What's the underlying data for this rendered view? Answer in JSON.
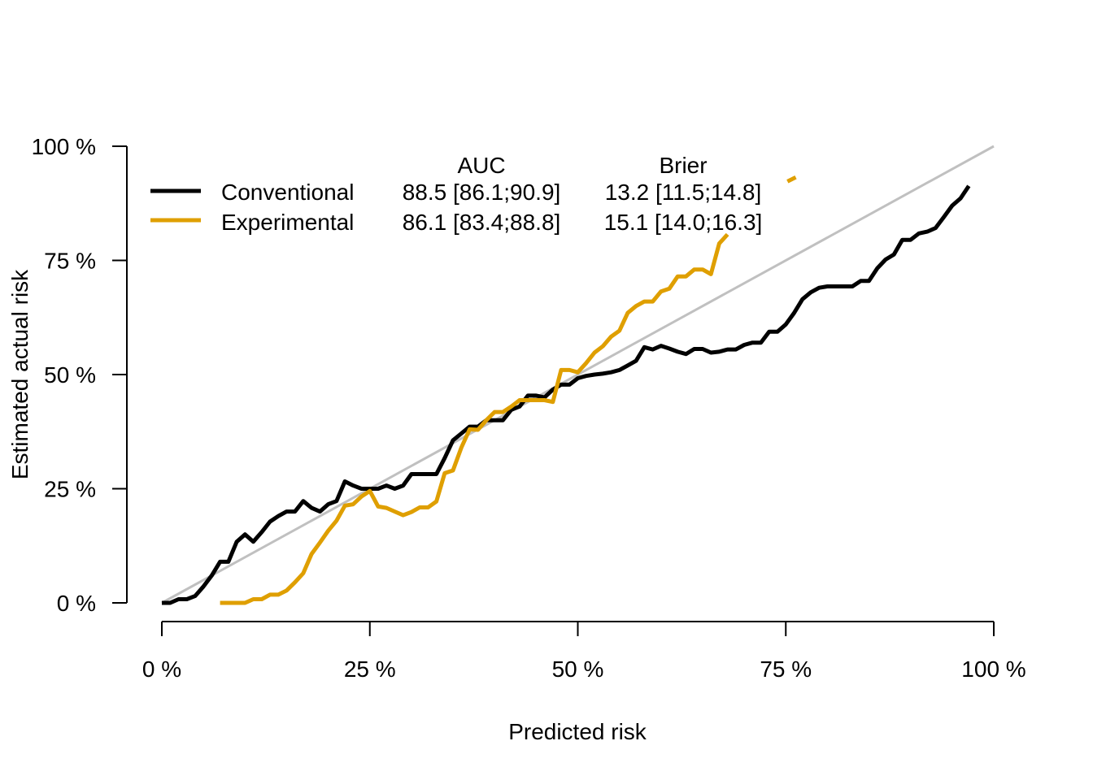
{
  "chart_data": {
    "type": "line",
    "xlabel": "Predicted risk",
    "ylabel": "Estimated actual risk",
    "xlim": [
      0,
      100
    ],
    "ylim": [
      0,
      100
    ],
    "x_ticks": [
      "0 %",
      "25 %",
      "50 %",
      "75 %",
      "100 %"
    ],
    "y_ticks": [
      "0 %",
      "25 %",
      "50 %",
      "75 %",
      "100 %"
    ],
    "x_tick_values": [
      0,
      25,
      50,
      75,
      100
    ],
    "y_tick_values": [
      0,
      25,
      50,
      75,
      100
    ],
    "grid": false,
    "reference_line": {
      "from": [
        0,
        0
      ],
      "to": [
        100,
        100
      ],
      "color": "#c0c0c0"
    },
    "legend": {
      "placement": "top-left",
      "headers": {
        "auc": "AUC",
        "brier": "Brier"
      },
      "rows": [
        {
          "name": "Conventional",
          "auc": "88.5 [86.1;90.9]",
          "brier": "13.2 [11.5;14.8]",
          "color": "#000000"
        },
        {
          "name": "Experimental",
          "auc": "86.1 [83.4;88.8]",
          "brier": "15.1 [14.0;16.3]",
          "color": "#DF9F00"
        }
      ]
    },
    "series": [
      {
        "name": "Conventional",
        "color": "#000000",
        "points": [
          [
            0,
            0
          ],
          [
            1,
            0
          ],
          [
            2,
            0.8
          ],
          [
            3,
            0.8
          ],
          [
            4,
            1.5
          ],
          [
            5,
            3.6
          ],
          [
            6,
            6
          ],
          [
            7,
            9
          ],
          [
            8,
            9
          ],
          [
            9,
            13.4
          ],
          [
            10,
            15
          ],
          [
            11,
            13.4
          ],
          [
            12,
            15.5
          ],
          [
            13,
            17.8
          ],
          [
            14,
            19
          ],
          [
            15,
            20
          ],
          [
            16,
            20
          ],
          [
            17,
            22.3
          ],
          [
            18,
            20.8
          ],
          [
            19,
            20
          ],
          [
            20,
            21.6
          ],
          [
            21,
            22.3
          ],
          [
            22,
            26.6
          ],
          [
            23,
            25.7
          ],
          [
            24,
            25
          ],
          [
            25,
            25
          ],
          [
            26,
            25
          ],
          [
            27,
            25.7
          ],
          [
            28,
            25
          ],
          [
            29,
            25.7
          ],
          [
            30,
            28.2
          ],
          [
            31,
            28.2
          ],
          [
            32,
            28.2
          ],
          [
            33,
            28.2
          ],
          [
            34,
            31.7
          ],
          [
            35,
            35.6
          ],
          [
            36,
            37.1
          ],
          [
            37,
            38.6
          ],
          [
            38,
            38.6
          ],
          [
            39,
            40
          ],
          [
            40,
            40
          ],
          [
            41,
            40
          ],
          [
            42,
            42.3
          ],
          [
            43,
            43
          ],
          [
            44,
            45.4
          ],
          [
            45,
            45.4
          ],
          [
            46,
            45
          ],
          [
            47,
            46.7
          ],
          [
            48,
            47.8
          ],
          [
            49,
            47.8
          ],
          [
            50,
            49.2
          ],
          [
            51,
            49.7
          ],
          [
            52,
            50
          ],
          [
            53,
            50.2
          ],
          [
            54,
            50.5
          ],
          [
            55,
            51
          ],
          [
            56,
            52
          ],
          [
            57,
            53
          ],
          [
            58,
            56
          ],
          [
            59,
            55.5
          ],
          [
            60,
            56.3
          ],
          [
            61,
            55.7
          ],
          [
            62,
            55
          ],
          [
            63,
            54.5
          ],
          [
            64,
            55.6
          ],
          [
            65,
            55.6
          ],
          [
            66,
            54.8
          ],
          [
            67,
            55
          ],
          [
            68,
            55.5
          ],
          [
            69,
            55.5
          ],
          [
            70,
            56.5
          ],
          [
            71,
            57
          ],
          [
            72,
            57
          ],
          [
            73,
            59.4
          ],
          [
            74,
            59.4
          ],
          [
            75,
            61
          ],
          [
            76,
            63.5
          ],
          [
            77,
            66.5
          ],
          [
            78,
            68
          ],
          [
            79,
            69
          ],
          [
            80,
            69.3
          ],
          [
            81,
            69.3
          ],
          [
            82,
            69.3
          ],
          [
            83,
            69.3
          ],
          [
            84,
            70.5
          ],
          [
            85,
            70.5
          ],
          [
            86,
            73.3
          ],
          [
            87,
            75.2
          ],
          [
            88,
            76.3
          ],
          [
            89,
            79.5
          ],
          [
            90,
            79.5
          ],
          [
            91,
            80.9
          ],
          [
            92,
            81.3
          ],
          [
            93,
            82.1
          ],
          [
            94,
            84.5
          ],
          [
            95,
            87
          ],
          [
            96,
            88.6
          ],
          [
            97,
            91.3
          ]
        ]
      },
      {
        "name": "Experimental",
        "color": "#DF9F00",
        "points": [
          [
            7,
            0
          ],
          [
            8,
            0
          ],
          [
            9,
            0
          ],
          [
            10,
            0
          ],
          [
            11,
            0.8
          ],
          [
            12,
            0.8
          ],
          [
            13,
            1.8
          ],
          [
            14,
            1.8
          ],
          [
            15,
            2.7
          ],
          [
            16,
            4.5
          ],
          [
            17,
            6.5
          ],
          [
            18,
            10.7
          ],
          [
            19,
            13.2
          ],
          [
            20,
            15.8
          ],
          [
            21,
            18
          ],
          [
            22,
            21.3
          ],
          [
            23,
            21.6
          ],
          [
            24,
            23.3
          ],
          [
            25,
            24.5
          ],
          [
            26,
            21.1
          ],
          [
            27,
            20.8
          ],
          [
            28,
            20
          ],
          [
            29,
            19.2
          ],
          [
            30,
            19.9
          ],
          [
            31,
            20.9
          ],
          [
            32,
            20.9
          ],
          [
            33,
            22.2
          ],
          [
            34,
            28.4
          ],
          [
            35,
            29
          ],
          [
            36,
            34
          ],
          [
            37,
            38
          ],
          [
            38,
            37.9
          ],
          [
            39,
            40
          ],
          [
            40,
            41.8
          ],
          [
            41,
            41.8
          ],
          [
            42,
            43
          ],
          [
            43,
            44.4
          ],
          [
            44,
            44.4
          ],
          [
            45,
            44.4
          ],
          [
            46,
            44.4
          ],
          [
            47,
            44
          ],
          [
            48,
            51
          ],
          [
            49,
            51
          ],
          [
            50,
            50.5
          ],
          [
            51,
            52.5
          ],
          [
            52,
            54.8
          ],
          [
            53,
            56.2
          ],
          [
            54,
            58.3
          ],
          [
            55,
            59.6
          ],
          [
            56,
            63.5
          ],
          [
            57,
            65
          ],
          [
            58,
            66
          ],
          [
            59,
            66
          ],
          [
            60,
            68.2
          ],
          [
            61,
            68.8
          ],
          [
            62,
            71.5
          ],
          [
            63,
            71.5
          ],
          [
            64,
            73
          ],
          [
            65,
            73
          ],
          [
            66,
            72
          ],
          [
            67,
            78.7
          ],
          [
            68,
            80.7
          ]
        ],
        "extra_segment": [
          [
            75.2,
            92.3
          ],
          [
            76.2,
            93.2
          ]
        ]
      }
    ]
  }
}
